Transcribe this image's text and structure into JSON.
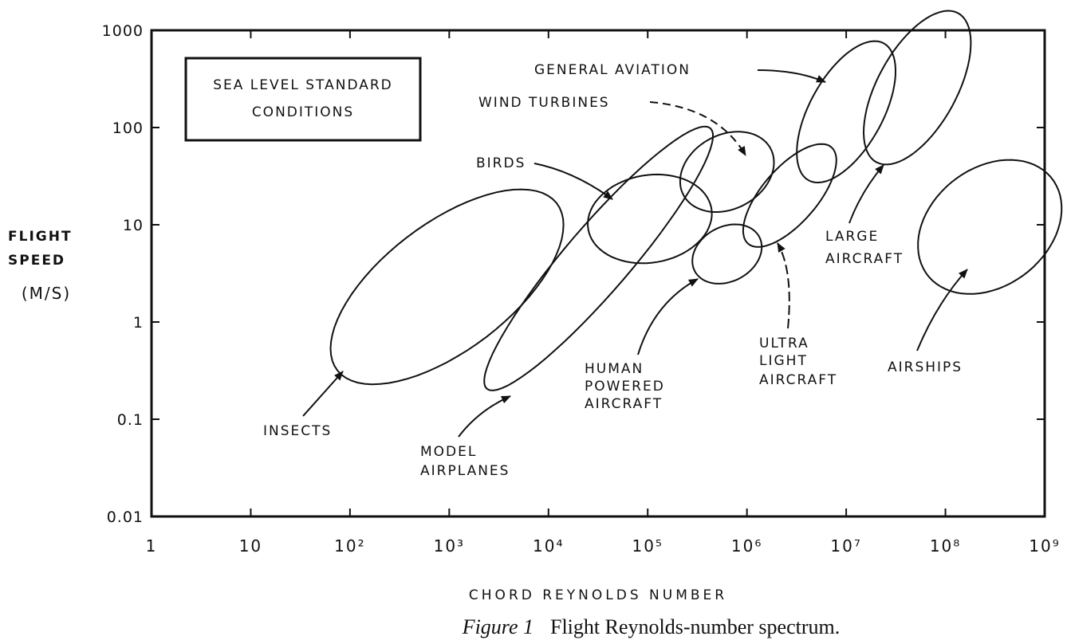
{
  "chart_data": {
    "type": "ellipse_regions",
    "x_label": "CHORD REYNOLDS NUMBER",
    "y_label": [
      "FLIGHT",
      "SPEED",
      "(M/S)"
    ],
    "note": [
      "SEA LEVEL STANDARD",
      "CONDITIONS"
    ],
    "caption": {
      "figure": "Figure 1",
      "text": "Flight Reynolds-number spectrum."
    },
    "xscale": "log",
    "yscale": "log",
    "xlim": [
      1,
      1000000000
    ],
    "ylim": [
      0.01,
      1000
    ],
    "xticks": [
      1,
      10,
      {
        "value": 100,
        "label": "10²"
      },
      {
        "value": 1000,
        "label": "10³"
      },
      {
        "value": 10000,
        "label": "10⁴"
      },
      {
        "value": 100000,
        "label": "10⁵"
      },
      {
        "value": 1000000,
        "label": "10⁶"
      },
      {
        "value": 10000000,
        "label": "10⁷"
      },
      {
        "value": 100000000,
        "label": "10⁸"
      },
      {
        "value": 1000000000,
        "label": "10⁹"
      }
    ],
    "yticks": [
      0.01,
      0.1,
      1,
      10,
      100,
      1000
    ],
    "color": "#111111",
    "regions": [
      {
        "label": [
          "INSECTS"
        ],
        "center": [
          950,
          2.3
        ],
        "rx": 1.4,
        "ry": 0.65,
        "angle": 38
      },
      {
        "label": [
          "MODEL",
          "AIRPLANES"
        ],
        "center": [
          32000,
          4.5
        ],
        "rx": 1.75,
        "ry": 0.33,
        "angle": 50
      },
      {
        "label": [
          "BIRDS"
        ],
        "center": [
          105000,
          11.5
        ],
        "rx": 0.63,
        "ry": 0.45,
        "angle": 10
      },
      {
        "label": [
          "WIND TURBINES"
        ],
        "center": [
          630000,
          35
        ],
        "rx": 0.5,
        "ry": 0.38,
        "angle": 30
      },
      {
        "label": [
          "HUMAN",
          "POWERED",
          "AIRCRAFT"
        ],
        "center": [
          630000,
          5
        ],
        "rx": 0.37,
        "ry": 0.28,
        "angle": 30
      },
      {
        "label": [
          "ULTRA",
          "LIGHT",
          "AIRCRAFT"
        ],
        "center": [
          2700000,
          20
        ],
        "rx": 0.65,
        "ry": 0.28,
        "angle": 50
      },
      {
        "label": [
          "GENERAL AVIATION"
        ],
        "center": [
          10000000,
          145
        ],
        "rx": 0.8,
        "ry": 0.37,
        "angle": 62
      },
      {
        "label": [
          "LARGE",
          "AIRCRAFT"
        ],
        "center": [
          52000000,
          257
        ],
        "rx": 0.87,
        "ry": 0.4,
        "angle": 62
      },
      {
        "label": [
          "AIRSHIPS"
        ],
        "center": [
          280000000,
          9.5
        ],
        "rx": 0.8,
        "ry": 0.6,
        "angle": 40
      }
    ]
  }
}
